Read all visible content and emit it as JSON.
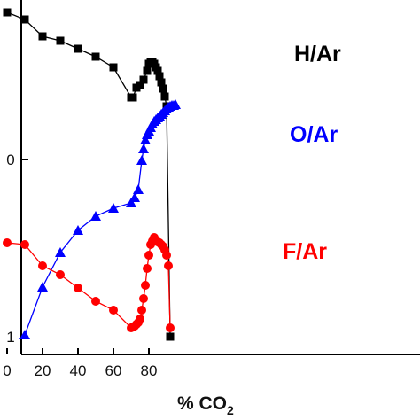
{
  "chart_data": {
    "type": "scatter",
    "xlabel_main": "% CO",
    "xlabel_sub": "2",
    "ylabel": "",
    "x_ticks": [
      "0",
      "20",
      "40",
      "60",
      "80"
    ],
    "y_ticks": [
      "0",
      "1"
    ],
    "series": [
      {
        "name": "H/Ar",
        "color": "#000000",
        "marker": "square",
        "x": [
          0,
          10,
          20,
          30,
          40,
          50,
          60,
          70,
          71,
          73,
          75,
          77,
          79,
          80,
          81,
          82,
          83,
          84,
          85,
          86,
          87,
          88,
          89,
          90,
          92
        ],
        "y": [
          14,
          22,
          41,
          46,
          55,
          64,
          76,
          110,
          110,
          99,
          96,
          90,
          80,
          72,
          70,
          70,
          72,
          76,
          80,
          86,
          93,
          100,
          109,
          120,
          380
        ]
      },
      {
        "name": "O/Ar",
        "color": "#0000ff",
        "marker": "triangle",
        "x": [
          10,
          20,
          30,
          40,
          50,
          60,
          70,
          72,
          74,
          76,
          77,
          78,
          79,
          80,
          81,
          82,
          83,
          84,
          85,
          86,
          87,
          88,
          89,
          90,
          91,
          92,
          93,
          94,
          95
        ],
        "y": [
          378,
          324,
          285,
          260,
          244,
          235,
          229,
          223,
          214,
          181,
          168,
          158,
          152,
          148,
          144,
          140,
          137,
          135,
          133,
          131,
          129,
          127,
          125,
          123,
          121,
          120,
          119,
          119,
          118
        ]
      },
      {
        "name": "F/Ar",
        "color": "#ff0000",
        "marker": "circle",
        "x": [
          0,
          10,
          20,
          30,
          40,
          50,
          60,
          70,
          71,
          72,
          73,
          74,
          75,
          76,
          77,
          78,
          79,
          80,
          81,
          82,
          83,
          84,
          85,
          86,
          87,
          88,
          89,
          90,
          91,
          92
        ],
        "y": [
          274,
          276,
          300,
          310,
          325,
          340,
          350,
          370,
          369,
          368,
          366,
          364,
          360,
          350,
          337,
          322,
          303,
          288,
          276,
          272,
          268,
          271,
          273,
          274,
          276,
          278,
          282,
          288,
          300,
          370
        ]
      }
    ]
  }
}
